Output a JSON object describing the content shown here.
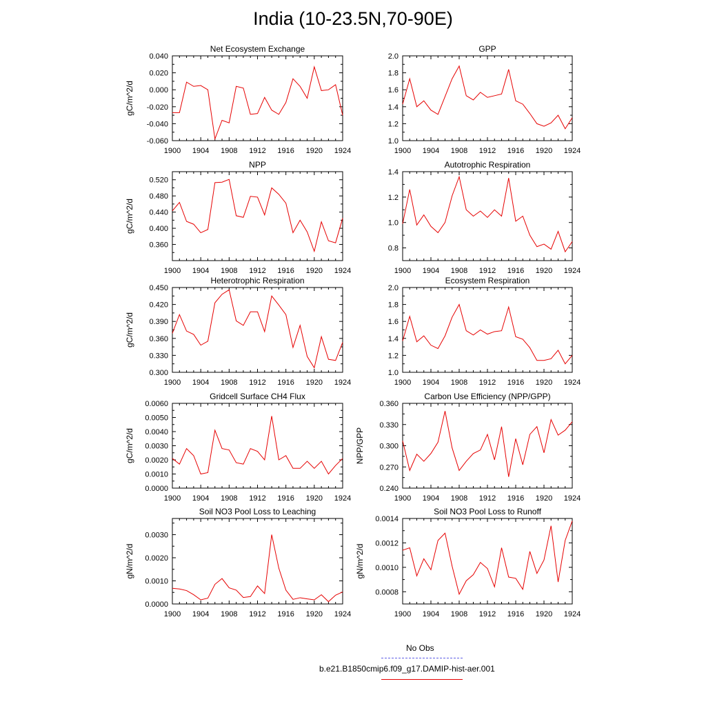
{
  "page": {
    "title": "India (10-23.5N,70-90E)"
  },
  "legend": {
    "items": [
      {
        "label": "No Obs",
        "color": "#5c5ce6",
        "style": "dashed"
      },
      {
        "label": "b.e21.B1850cmip6.f09_g17.DAMIP-hist-aer.001",
        "color": "#e60000",
        "style": "solid"
      }
    ]
  },
  "chart_data": [
    {
      "type": "line",
      "title": "Net Ecosystem Exchange",
      "ylabel": "gC/m^2/d",
      "xlim": [
        1900,
        1924
      ],
      "ylim": [
        -0.06,
        0.04
      ],
      "xticks": [
        "1900",
        "1904",
        "1908",
        "1912",
        "1916",
        "1920",
        "1924"
      ],
      "yticks": [
        "-0.060",
        "-0.040",
        "-0.020",
        "0.000",
        "0.020",
        "0.040"
      ],
      "x": [
        1900,
        1901,
        1902,
        1903,
        1904,
        1905,
        1906,
        1907,
        1908,
        1909,
        1910,
        1911,
        1912,
        1913,
        1914,
        1915,
        1916,
        1917,
        1918,
        1919,
        1920,
        1921,
        1922,
        1923,
        1924
      ],
      "series": [
        {
          "color": "#e60000",
          "values": [
            -0.027,
            -0.027,
            0.009,
            0.004,
            0.005,
            0.0,
            -0.058,
            -0.036,
            -0.039,
            0.004,
            0.002,
            -0.029,
            -0.028,
            -0.009,
            -0.024,
            -0.029,
            -0.015,
            0.013,
            0.004,
            -0.01,
            0.027,
            -0.001,
            0.0,
            0.006,
            -0.03
          ]
        }
      ]
    },
    {
      "type": "line",
      "title": "GPP",
      "ylabel": "",
      "xlim": [
        1900,
        1924
      ],
      "ylim": [
        1.0,
        2.0
      ],
      "xticks": [
        "1900",
        "1904",
        "1908",
        "1912",
        "1916",
        "1920",
        "1924"
      ],
      "yticks": [
        "1.0",
        "1.2",
        "1.4",
        "1.6",
        "1.8",
        "2.0"
      ],
      "x": [
        1900,
        1901,
        1902,
        1903,
        1904,
        1905,
        1906,
        1907,
        1908,
        1909,
        1910,
        1911,
        1912,
        1913,
        1914,
        1915,
        1916,
        1917,
        1918,
        1919,
        1920,
        1921,
        1922,
        1923,
        1924
      ],
      "series": [
        {
          "color": "#e60000",
          "values": [
            1.43,
            1.73,
            1.4,
            1.47,
            1.36,
            1.31,
            1.52,
            1.73,
            1.88,
            1.53,
            1.48,
            1.57,
            1.51,
            1.53,
            1.55,
            1.84,
            1.47,
            1.43,
            1.32,
            1.2,
            1.17,
            1.21,
            1.3,
            1.14,
            1.27
          ]
        }
      ]
    },
    {
      "type": "line",
      "title": "NPP",
      "ylabel": "gC/m^2/d",
      "xlim": [
        1900,
        1924
      ],
      "ylim": [
        0.32,
        0.54
      ],
      "xticks": [
        "1900",
        "1904",
        "1908",
        "1912",
        "1916",
        "1920",
        "1924"
      ],
      "yticks": [
        "0.360",
        "0.400",
        "0.440",
        "0.480",
        "0.520"
      ],
      "x": [
        1900,
        1901,
        1902,
        1903,
        1904,
        1905,
        1906,
        1907,
        1908,
        1909,
        1910,
        1911,
        1912,
        1913,
        1914,
        1915,
        1916,
        1917,
        1918,
        1919,
        1920,
        1921,
        1922,
        1923,
        1924
      ],
      "series": [
        {
          "color": "#e60000",
          "values": [
            0.443,
            0.464,
            0.417,
            0.41,
            0.389,
            0.397,
            0.513,
            0.514,
            0.521,
            0.431,
            0.427,
            0.479,
            0.477,
            0.433,
            0.5,
            0.484,
            0.462,
            0.389,
            0.42,
            0.391,
            0.343,
            0.416,
            0.369,
            0.364,
            0.425
          ]
        }
      ]
    },
    {
      "type": "line",
      "title": "Autotrophic Respiration",
      "ylabel": "",
      "xlim": [
        1900,
        1924
      ],
      "ylim": [
        0.7,
        1.4
      ],
      "xticks": [
        "1900",
        "1904",
        "1908",
        "1912",
        "1916",
        "1920",
        "1924"
      ],
      "yticks": [
        "0.8",
        "1.0",
        "1.2",
        "1.4"
      ],
      "x": [
        1900,
        1901,
        1902,
        1903,
        1904,
        1905,
        1906,
        1907,
        1908,
        1909,
        1910,
        1911,
        1912,
        1913,
        1914,
        1915,
        1916,
        1917,
        1918,
        1919,
        1920,
        1921,
        1922,
        1923,
        1924
      ],
      "series": [
        {
          "color": "#e60000",
          "values": [
            0.99,
            1.26,
            0.98,
            1.06,
            0.97,
            0.92,
            1.0,
            1.21,
            1.36,
            1.1,
            1.05,
            1.09,
            1.04,
            1.1,
            1.05,
            1.35,
            1.01,
            1.05,
            0.9,
            0.81,
            0.83,
            0.79,
            0.93,
            0.77,
            0.85
          ]
        }
      ]
    },
    {
      "type": "line",
      "title": "Heterotrophic Respiration",
      "ylabel": "gC/m^2/d",
      "xlim": [
        1900,
        1924
      ],
      "ylim": [
        0.3,
        0.45
      ],
      "xticks": [
        "1900",
        "1904",
        "1908",
        "1912",
        "1916",
        "1920",
        "1924"
      ],
      "yticks": [
        "0.300",
        "0.330",
        "0.360",
        "0.390",
        "0.420",
        "0.450"
      ],
      "x": [
        1900,
        1901,
        1902,
        1903,
        1904,
        1905,
        1906,
        1907,
        1908,
        1909,
        1910,
        1911,
        1912,
        1913,
        1914,
        1915,
        1916,
        1917,
        1918,
        1919,
        1920,
        1921,
        1922,
        1923,
        1924
      ],
      "series": [
        {
          "color": "#e60000",
          "values": [
            0.369,
            0.402,
            0.373,
            0.367,
            0.348,
            0.355,
            0.423,
            0.438,
            0.446,
            0.391,
            0.383,
            0.407,
            0.407,
            0.372,
            0.435,
            0.419,
            0.402,
            0.344,
            0.383,
            0.328,
            0.308,
            0.363,
            0.323,
            0.321,
            0.353
          ]
        }
      ]
    },
    {
      "type": "line",
      "title": "Ecosystem Respiration",
      "ylabel": "",
      "xlim": [
        1900,
        1924
      ],
      "ylim": [
        1.0,
        2.0
      ],
      "xticks": [
        "1900",
        "1904",
        "1908",
        "1912",
        "1916",
        "1920",
        "1924"
      ],
      "yticks": [
        "1.0",
        "1.2",
        "1.4",
        "1.6",
        "1.8",
        "2.0"
      ],
      "x": [
        1900,
        1901,
        1902,
        1903,
        1904,
        1905,
        1906,
        1907,
        1908,
        1909,
        1910,
        1911,
        1912,
        1913,
        1914,
        1915,
        1916,
        1917,
        1918,
        1919,
        1920,
        1921,
        1922,
        1923,
        1924
      ],
      "series": [
        {
          "color": "#e60000",
          "values": [
            1.37,
            1.66,
            1.36,
            1.43,
            1.32,
            1.28,
            1.43,
            1.65,
            1.8,
            1.49,
            1.44,
            1.5,
            1.45,
            1.48,
            1.49,
            1.77,
            1.42,
            1.39,
            1.29,
            1.14,
            1.14,
            1.16,
            1.26,
            1.1,
            1.2
          ]
        }
      ]
    },
    {
      "type": "line",
      "title": "Gridcell Surface CH4 Flux",
      "ylabel": "gC/m^2/d",
      "xlim": [
        1900,
        1924
      ],
      "ylim": [
        0.0,
        0.006
      ],
      "xticks": [
        "1900",
        "1904",
        "1908",
        "1912",
        "1916",
        "1920",
        "1924"
      ],
      "yticks": [
        "0.0000",
        "0.0010",
        "0.0020",
        "0.0030",
        "0.0040",
        "0.0050",
        "0.0060"
      ],
      "x": [
        1900,
        1901,
        1902,
        1903,
        1904,
        1905,
        1906,
        1907,
        1908,
        1909,
        1910,
        1911,
        1912,
        1913,
        1914,
        1915,
        1916,
        1917,
        1918,
        1919,
        1920,
        1921,
        1922,
        1923,
        1924
      ],
      "series": [
        {
          "color": "#e60000",
          "values": [
            0.0021,
            0.0017,
            0.0028,
            0.0023,
            0.001,
            0.0011,
            0.0041,
            0.0028,
            0.0027,
            0.0018,
            0.0017,
            0.0028,
            0.0026,
            0.002,
            0.0051,
            0.002,
            0.0023,
            0.0014,
            0.0014,
            0.0019,
            0.0014,
            0.0019,
            0.001,
            0.0016,
            0.0021
          ]
        }
      ]
    },
    {
      "type": "line",
      "title": "Carbon Use Efficiency (NPP/GPP)",
      "ylabel": "NPP/GPP",
      "xlim": [
        1900,
        1924
      ],
      "ylim": [
        0.24,
        0.36
      ],
      "xticks": [
        "1900",
        "1904",
        "1908",
        "1912",
        "1916",
        "1920",
        "1924"
      ],
      "yticks": [
        "0.240",
        "0.270",
        "0.300",
        "0.330",
        "0.360"
      ],
      "x": [
        1900,
        1901,
        1902,
        1903,
        1904,
        1905,
        1906,
        1907,
        1908,
        1909,
        1910,
        1911,
        1912,
        1913,
        1914,
        1915,
        1916,
        1917,
        1918,
        1919,
        1920,
        1921,
        1922,
        1923,
        1924
      ],
      "series": [
        {
          "color": "#e60000",
          "values": [
            0.307,
            0.265,
            0.288,
            0.278,
            0.289,
            0.305,
            0.349,
            0.297,
            0.265,
            0.278,
            0.289,
            0.294,
            0.316,
            0.28,
            0.327,
            0.256,
            0.31,
            0.273,
            0.316,
            0.327,
            0.29,
            0.337,
            0.315,
            0.322,
            0.334
          ]
        }
      ]
    },
    {
      "type": "line",
      "title": "Soil NO3 Pool Loss to Leaching",
      "ylabel": "gN/m^2/d",
      "xlim": [
        1900,
        1924
      ],
      "ylim": [
        0.0,
        0.0037
      ],
      "xticks": [
        "1900",
        "1904",
        "1908",
        "1912",
        "1916",
        "1920",
        "1924"
      ],
      "yticks": [
        "0.0000",
        "0.0010",
        "0.0020",
        "0.0030"
      ],
      "x": [
        1900,
        1901,
        1902,
        1903,
        1904,
        1905,
        1906,
        1907,
        1908,
        1909,
        1910,
        1911,
        1912,
        1913,
        1914,
        1915,
        1916,
        1917,
        1918,
        1919,
        1920,
        1921,
        1922,
        1923,
        1924
      ],
      "series": [
        {
          "color": "#e60000",
          "values": [
            0.00068,
            0.00065,
            0.00058,
            0.0004,
            0.00018,
            0.00025,
            0.00085,
            0.0011,
            0.0007,
            0.0006,
            0.00028,
            0.00032,
            0.00078,
            0.00045,
            0.003,
            0.00155,
            0.0006,
            0.0002,
            0.00027,
            0.00022,
            0.00018,
            0.0004,
            0.0001,
            0.00038,
            0.00052
          ]
        }
      ]
    },
    {
      "type": "line",
      "title": "Soil NO3 Pool Loss to Runoff",
      "ylabel": "gN/m^2/d",
      "xlim": [
        1900,
        1924
      ],
      "ylim": [
        0.0007,
        0.0014
      ],
      "xticks": [
        "1900",
        "1904",
        "1908",
        "1912",
        "1916",
        "1920",
        "1924"
      ],
      "yticks": [
        "0.0008",
        "0.0010",
        "0.0012",
        "0.0014"
      ],
      "x": [
        1900,
        1901,
        1902,
        1903,
        1904,
        1905,
        1906,
        1907,
        1908,
        1909,
        1910,
        1911,
        1912,
        1913,
        1914,
        1915,
        1916,
        1917,
        1918,
        1919,
        1920,
        1921,
        1922,
        1923,
        1924
      ],
      "series": [
        {
          "color": "#e60000",
          "values": [
            0.00114,
            0.00116,
            0.00093,
            0.00107,
            0.00098,
            0.00122,
            0.00128,
            0.00101,
            0.00078,
            0.00089,
            0.00094,
            0.00104,
            0.00099,
            0.00084,
            0.00116,
            0.00092,
            0.00091,
            0.00082,
            0.00113,
            0.00095,
            0.00106,
            0.00134,
            0.00088,
            0.00122,
            0.00138
          ]
        }
      ]
    }
  ]
}
